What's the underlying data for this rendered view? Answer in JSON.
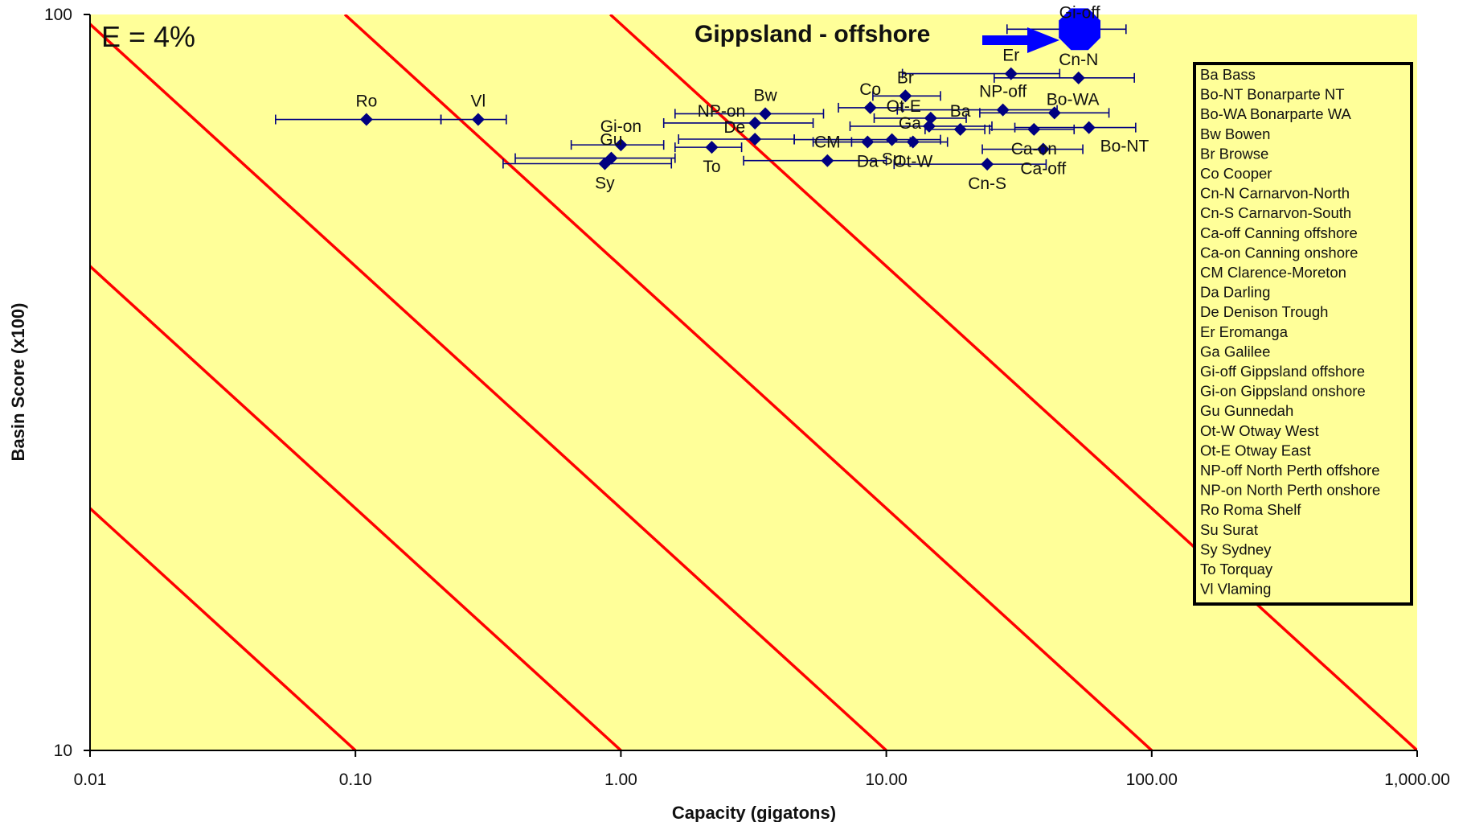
{
  "chart_data": {
    "type": "scatter",
    "xlabel": "Capacity (gigatons)",
    "ylabel": "Basin Score (x100)",
    "x_scale": "log",
    "y_scale": "log",
    "xlim": [
      0.01,
      1000
    ],
    "ylim": [
      10,
      100
    ],
    "x_ticks": [
      {
        "value": 0.01,
        "label": "0.01"
      },
      {
        "value": 0.1,
        "label": "0.10"
      },
      {
        "value": 1,
        "label": "1.00"
      },
      {
        "value": 10,
        "label": "10.00"
      },
      {
        "value": 100,
        "label": "100.00"
      },
      {
        "value": 1000,
        "label": "1,000.00"
      }
    ],
    "y_ticks": [
      {
        "value": 10,
        "label": "10"
      },
      {
        "value": 100,
        "label": "100"
      }
    ],
    "annotation": "E = 4%",
    "callout": {
      "text": "Gippsland - offshore",
      "target": "Gi-off"
    },
    "colors": {
      "plot_bg": "#ffff99",
      "points": "#000080",
      "lines": "#ff0000",
      "arrow": "#0000ff",
      "highlight": "#0000ff"
    },
    "reference_lines": [
      {
        "bottom_x": 0.1
      },
      {
        "bottom_x": 1
      },
      {
        "bottom_x": 10
      },
      {
        "bottom_x": 100
      },
      {
        "bottom_x": 1000
      }
    ],
    "points": [
      {
        "label": "Ro",
        "x": 0.11,
        "y": 72,
        "xerr": [
          0.05,
          0.21
        ],
        "label_pos": "above"
      },
      {
        "label": "Vl",
        "x": 0.29,
        "y": 72,
        "xerr": [
          0.21,
          0.37
        ],
        "label_pos": "above"
      },
      {
        "label": "Gi-on",
        "x": 1.0,
        "y": 66.5,
        "xerr": [
          0.65,
          1.45
        ],
        "label_pos": "above"
      },
      {
        "label": "Gu",
        "x": 0.92,
        "y": 63.8,
        "xerr": [
          0.4,
          1.6
        ],
        "label_pos": "above"
      },
      {
        "label": "Sy",
        "x": 0.87,
        "y": 62.7,
        "xerr": [
          0.36,
          1.55
        ],
        "label_pos": "below"
      },
      {
        "label": "To",
        "x": 2.2,
        "y": 66,
        "xerr": [
          1.6,
          2.85
        ],
        "label_pos": "below"
      },
      {
        "label": "De",
        "x": 3.2,
        "y": 67.7,
        "xerr": [
          1.65,
          4.5
        ],
        "label_pos": "above-left"
      },
      {
        "label": "NP-on",
        "x": 3.2,
        "y": 71.2,
        "xerr": [
          1.45,
          5.3
        ],
        "label_pos": "above-left"
      },
      {
        "label": "Bw",
        "x": 3.5,
        "y": 73.3,
        "xerr": [
          1.6,
          5.8
        ],
        "label_pos": "above"
      },
      {
        "label": "CM",
        "x": 6.0,
        "y": 63.3,
        "xerr": [
          2.9,
          10.0
        ],
        "label_pos": "above"
      },
      {
        "label": "Co",
        "x": 8.7,
        "y": 74.7,
        "xerr": [
          6.6,
          11.5
        ],
        "label_pos": "above"
      },
      {
        "label": "Da",
        "x": 8.5,
        "y": 67.1,
        "xerr": [
          5.3,
          12.3
        ],
        "label_pos": "below"
      },
      {
        "label": "Su",
        "x": 10.5,
        "y": 67.6,
        "xerr": [
          4.5,
          16.0
        ],
        "label_pos": "below"
      },
      {
        "label": "Ot-W",
        "x": 12.6,
        "y": 67.1,
        "xerr": [
          7.4,
          17.0
        ],
        "label_pos": "below"
      },
      {
        "label": "Br",
        "x": 11.8,
        "y": 77.5,
        "xerr": [
          8.9,
          16.0
        ],
        "label_pos": "above"
      },
      {
        "label": "Ot-E",
        "x": 14.7,
        "y": 72.3,
        "xerr": [
          9.0,
          20.0
        ],
        "label_pos": "above-left"
      },
      {
        "label": "Ga",
        "x": 14.5,
        "y": 70.5,
        "xerr": [
          7.3,
          25.0
        ],
        "label_pos": "left"
      },
      {
        "label": "Ba",
        "x": 19.0,
        "y": 69.8,
        "xerr": [
          14.0,
          23.5
        ],
        "label_pos": "above"
      },
      {
        "label": "Er",
        "x": 29.5,
        "y": 83.1,
        "xerr": [
          11.5,
          45.0
        ],
        "label_pos": "above"
      },
      {
        "label": "Cn-N",
        "x": 53.0,
        "y": 82.0,
        "xerr": [
          25.5,
          86.0
        ],
        "label_pos": "above"
      },
      {
        "label": "NP-off",
        "x": 27.5,
        "y": 74.2,
        "xerr": [
          11.0,
          44.0
        ],
        "label_pos": "above"
      },
      {
        "label": "Bo-WA",
        "x": 43.0,
        "y": 73.5,
        "xerr": [
          22.5,
          69.0
        ],
        "label_pos": "above-right"
      },
      {
        "label": "Ca-on",
        "x": 36.0,
        "y": 69.8,
        "xerr": [
          24.5,
          51.0
        ],
        "label_pos": "below"
      },
      {
        "label": "Bo-NT",
        "x": 58.0,
        "y": 70.2,
        "xerr": [
          30.5,
          87.0
        ],
        "label_pos": "below-right"
      },
      {
        "label": "Ca-off",
        "x": 39.0,
        "y": 65.6,
        "xerr": [
          23.0,
          55.0
        ],
        "label_pos": "below"
      },
      {
        "label": "Cn-S",
        "x": 24.0,
        "y": 62.6,
        "xerr": [
          10.7,
          40.0
        ],
        "label_pos": "below"
      },
      {
        "label": "Gi-off",
        "x": 53.5,
        "y": 95.5,
        "xerr": [
          28.5,
          80.0
        ],
        "label_pos": "above",
        "highlight": true
      }
    ],
    "legend": {
      "placement": "right",
      "entries": [
        "Ba  Bass",
        "Bo-NT  Bonarparte NT",
        "Bo-WA  Bonarparte WA",
        "Bw  Bowen",
        "Br  Browse",
        "Co  Cooper",
        "Cn-N  Carnarvon-North",
        "Cn-S  Carnarvon-South",
        "Ca-off  Canning offshore",
        "Ca-on  Canning onshore",
        "CM  Clarence-Moreton",
        "Da  Darling",
        "De  Denison Trough",
        "Er  Eromanga",
        "Ga  Galilee",
        "Gi-off  Gippsland offshore",
        "Gi-on  Gippsland onshore",
        "Gu  Gunnedah",
        "Ot-W  Otway West",
        "Ot-E  Otway East",
        "NP-off  North Perth offshore",
        "NP-on  North Perth onshore",
        "Ro  Roma Shelf",
        "Su  Surat",
        "Sy  Sydney",
        "To  Torquay",
        "Vl Vlaming"
      ]
    }
  }
}
